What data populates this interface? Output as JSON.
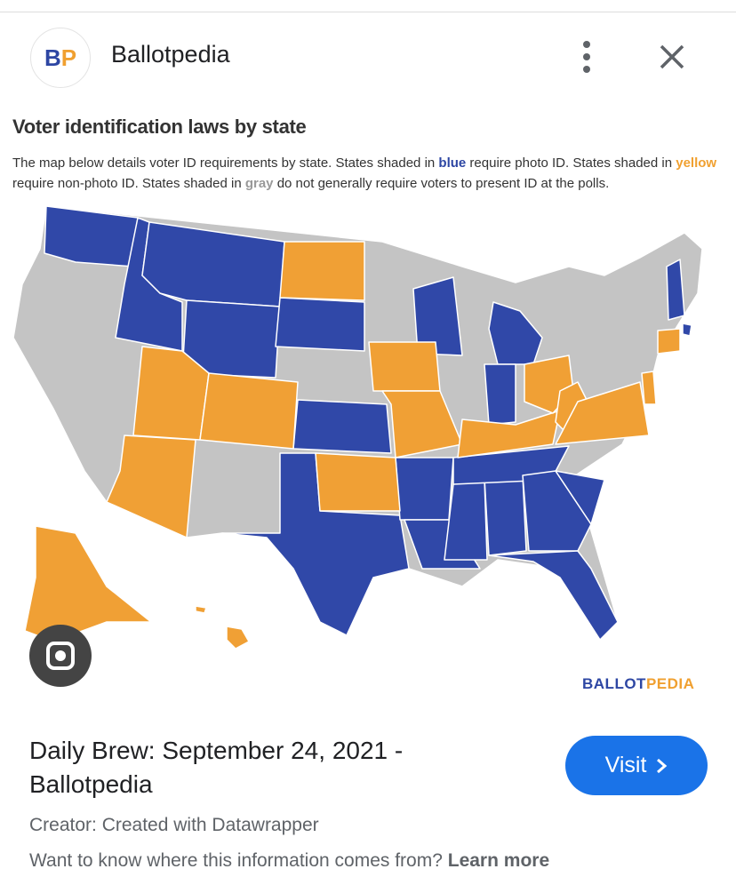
{
  "header": {
    "source_initials": "BP",
    "source_name": "Ballotpedia"
  },
  "image": {
    "title": "Voter identification laws by state",
    "description": [
      "The map below details voter ID requirements by state. States shaded in ",
      "blue",
      " require photo ID. States shaded in ",
      "yellow",
      " require non-photo ID. States shaded in ",
      "gray",
      " do not generally require voters to present ID at the polls."
    ],
    "logo": [
      "BALLOT",
      "PEDIA"
    ]
  },
  "result": {
    "title": "Daily Brew: September 24, 2021 - Ballotpedia",
    "button": "Visit",
    "creator": "Creator: Created with Datawrapper",
    "info": "Want to know where this information comes from?",
    "info_link": "Learn more"
  }
}
